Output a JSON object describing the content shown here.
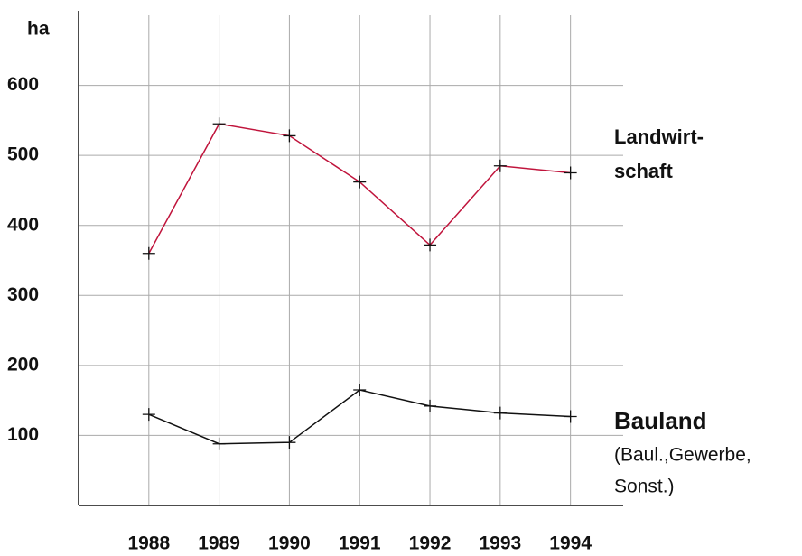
{
  "chart_data": {
    "type": "line",
    "y_label": "ha",
    "x": [
      1988,
      1989,
      1990,
      1991,
      1992,
      1993,
      1994
    ],
    "xlim": [
      1987,
      1994.75
    ],
    "xticks": [
      1988,
      1989,
      1990,
      1991,
      1992,
      1993,
      1994
    ],
    "ylim": [
      0,
      700
    ],
    "yticks": [
      100,
      200,
      300,
      400,
      500,
      600
    ],
    "grid": true,
    "series": [
      {
        "name": "Landwirt-schaft",
        "color": "#c0143c",
        "values": [
          360,
          545,
          528,
          462,
          372,
          485,
          475
        ]
      },
      {
        "name": "Bauland",
        "color": "#111111",
        "values": [
          130,
          88,
          90,
          165,
          142,
          132,
          127
        ],
        "annotation": [
          "(Baul.,Gewerbe,",
          "Sonst.)"
        ]
      }
    ]
  }
}
